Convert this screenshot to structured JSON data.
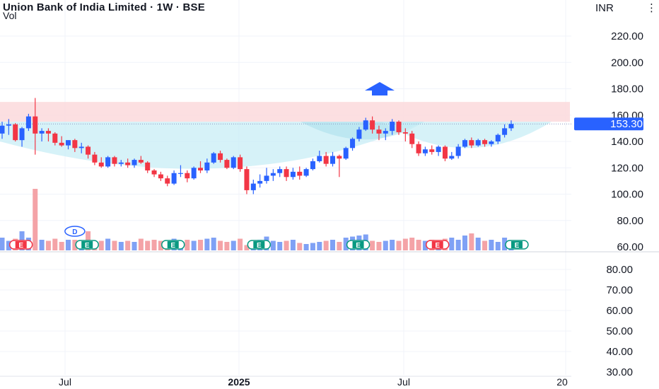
{
  "header": {
    "title": "Union Bank of India Limited · 1W · BSE",
    "volume_label": "Vol",
    "currency": "INR",
    "menu_icon": "more-vert-icon"
  },
  "colors": {
    "up": "#2962ff",
    "down": "#f23645",
    "vol_up": "#7fa1f5",
    "vol_down": "#f4a3a7",
    "resistance_zone": "#fcd9dc",
    "cup_fill": "#c8edf5",
    "price_tag": "#2962ff",
    "grid": "#f0f3fa",
    "earnings_green": "#089981",
    "earnings_red": "#f23645",
    "dividend_blue": "#2962ff",
    "arrow": "#2962ff"
  },
  "chart_data": [
    {
      "type": "candlestick",
      "title": "Union Bank of India Limited · 1W · BSE",
      "x_tick_labels": [
        "Jul",
        "2025",
        "Jul",
        "20"
      ],
      "y_axis": {
        "currency": "INR",
        "ticks": [
          "220.00",
          "200.00",
          "180.00",
          "160.00",
          "140.00",
          "120.00",
          "100.00",
          "80.00",
          "60.00"
        ],
        "range": [
          60,
          230
        ]
      },
      "last_price": "153.30",
      "resistance_zone": [
        155,
        170
      ],
      "series": [
        {
          "name": "OHLC",
          "ohlc": [
            [
              146,
              155,
              142,
              152
            ],
            [
              152,
              157,
              145,
              153
            ],
            [
              153,
              154,
              140,
              141
            ],
            [
              141,
              151,
              136,
              150
            ],
            [
              150,
              161,
              148,
              159
            ],
            [
              159,
              173,
              130,
              146
            ],
            [
              146,
              150,
              140,
              148
            ],
            [
              148,
              150,
              140,
              146
            ],
            [
              146,
              147,
              137,
              139
            ],
            [
              139,
              144,
              136,
              137
            ],
            [
              137,
              141,
              134,
              141
            ],
            [
              141,
              142,
              132,
              135
            ],
            [
              135,
              139,
              131,
              136
            ],
            [
              136,
              137,
              127,
              130
            ],
            [
              130,
              132,
              122,
              124
            ],
            [
              124,
              128,
              120,
              121
            ],
            [
              121,
              129,
              120,
              128
            ],
            [
              128,
              129,
              121,
              123
            ],
            [
              123,
              126,
              121,
              124
            ],
            [
              124,
              127,
              120,
              122
            ],
            [
              122,
              127,
              120,
              126
            ],
            [
              126,
              129,
              123,
              124
            ],
            [
              124,
              125,
              116,
              118
            ],
            [
              118,
              119,
              113,
              115
            ],
            [
              115,
              117,
              110,
              112
            ],
            [
              112,
              114,
              106,
              108
            ],
            [
              108,
              118,
              107,
              116
            ],
            [
              116,
              122,
              113,
              116
            ],
            [
              116,
              118,
              109,
              112
            ],
            [
              112,
              121,
              111,
              120
            ],
            [
              120,
              125,
              116,
              118
            ],
            [
              118,
              127,
              116,
              124
            ],
            [
              124,
              132,
              123,
              131
            ],
            [
              131,
              133,
              124,
              126
            ],
            [
              126,
              127,
              119,
              120
            ],
            [
              120,
              129,
              119,
              128
            ],
            [
              128,
              130,
              117,
              119
            ],
            [
              119,
              121,
              100,
              103
            ],
            [
              103,
              111,
              100,
              108
            ],
            [
              108,
              115,
              105,
              110
            ],
            [
              110,
              120,
              108,
              114
            ],
            [
              114,
              119,
              110,
              116
            ],
            [
              116,
              121,
              113,
              119
            ],
            [
              119,
              121,
              110,
              113
            ],
            [
              113,
              120,
              111,
              117
            ],
            [
              117,
              121,
              111,
              114
            ],
            [
              114,
              120,
              113,
              119
            ],
            [
              119,
              127,
              118,
              125
            ],
            [
              125,
              133,
              124,
              129
            ],
            [
              129,
              132,
              121,
              123
            ],
            [
              123,
              132,
              121,
              129
            ],
            [
              129,
              130,
              113,
              127
            ],
            [
              127,
              136,
              126,
              135
            ],
            [
              135,
              143,
              133,
              142
            ],
            [
              142,
              151,
              140,
              149
            ],
            [
              149,
              158,
              148,
              156
            ],
            [
              156,
              159,
              146,
              149
            ],
            [
              149,
              152,
              141,
              146
            ],
            [
              146,
              150,
              141,
              148
            ],
            [
              148,
              157,
              145,
              155
            ],
            [
              155,
              156,
              145,
              147
            ],
            [
              147,
              150,
              140,
              146
            ],
            [
              146,
              148,
              135,
              138
            ],
            [
              138,
              140,
              129,
              131
            ],
            [
              131,
              136,
              129,
              134
            ],
            [
              134,
              137,
              130,
              132
            ],
            [
              132,
              137,
              129,
              136
            ],
            [
              136,
              137,
              125,
              127
            ],
            [
              127,
              132,
              126,
              129
            ],
            [
              129,
              138,
              127,
              136
            ],
            [
              136,
              142,
              135,
              141
            ],
            [
              141,
              143,
              135,
              137
            ],
            [
              137,
              142,
              136,
              141
            ],
            [
              141,
              142,
              136,
              138
            ],
            [
              138,
              141,
              136,
              140
            ],
            [
              140,
              146,
              138,
              145
            ],
            [
              145,
              153,
              143,
              150
            ],
            [
              150,
              156,
              148,
              153.3
            ]
          ]
        },
        {
          "name": "Vol",
          "values": [
            12,
            9,
            11,
            18,
            12,
            58,
            10,
            9,
            11,
            8,
            10,
            10,
            9,
            18,
            9,
            9,
            11,
            9,
            8,
            9,
            8,
            11,
            9,
            10,
            9,
            8,
            11,
            9,
            10,
            9,
            10,
            11,
            12,
            9,
            8,
            9,
            11,
            5,
            9,
            10,
            13,
            9,
            8,
            9,
            10,
            7,
            6,
            7,
            8,
            9,
            10,
            8,
            12,
            13,
            14,
            15,
            9,
            8,
            9,
            10,
            9,
            11,
            12,
            10,
            9,
            10,
            9,
            11,
            12,
            10,
            14,
            16,
            12,
            9,
            10,
            8,
            12,
            8
          ]
        }
      ],
      "volume_axis": {
        "ticks": [
          "80.00",
          "70.00",
          "60.00",
          "50.00",
          "40.00",
          "30.00"
        ]
      },
      "events": [
        {
          "type": "earnings",
          "label": "E",
          "color": "red"
        },
        {
          "type": "earnings",
          "label": "E",
          "color": "green"
        },
        {
          "type": "dividend",
          "label": "D",
          "color": "blue"
        },
        {
          "type": "earnings",
          "label": "E",
          "color": "green"
        },
        {
          "type": "earnings",
          "label": "E",
          "color": "green"
        },
        {
          "type": "earnings",
          "label": "E",
          "color": "green"
        },
        {
          "type": "earnings",
          "label": "E",
          "color": "red"
        },
        {
          "type": "earnings",
          "label": "E",
          "color": "green"
        }
      ]
    }
  ]
}
